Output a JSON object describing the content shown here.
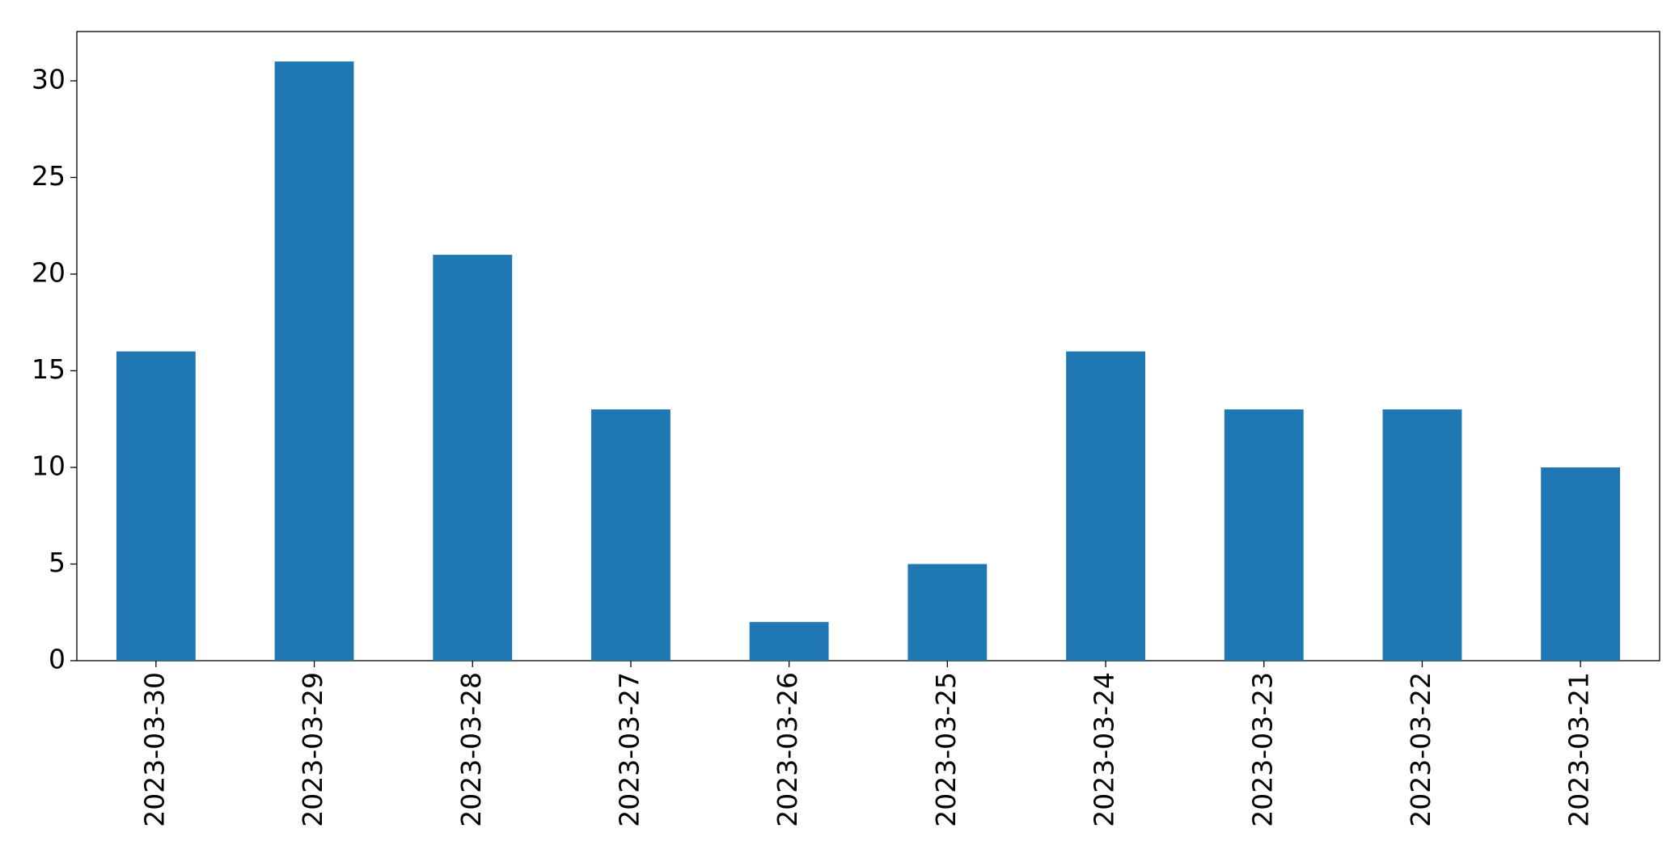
{
  "chart_data": {
    "type": "bar",
    "categories": [
      "2023-03-30",
      "2023-03-29",
      "2023-03-28",
      "2023-03-27",
      "2023-03-26",
      "2023-03-25",
      "2023-03-24",
      "2023-03-23",
      "2023-03-22",
      "2023-03-21"
    ],
    "values": [
      16,
      31,
      21,
      13,
      2,
      5,
      16,
      13,
      13,
      10
    ],
    "color": "#1f77b4",
    "ylim": [
      0,
      32.55
    ],
    "yticks": [
      0,
      5,
      10,
      15,
      20,
      25,
      30
    ],
    "grid": false
  }
}
